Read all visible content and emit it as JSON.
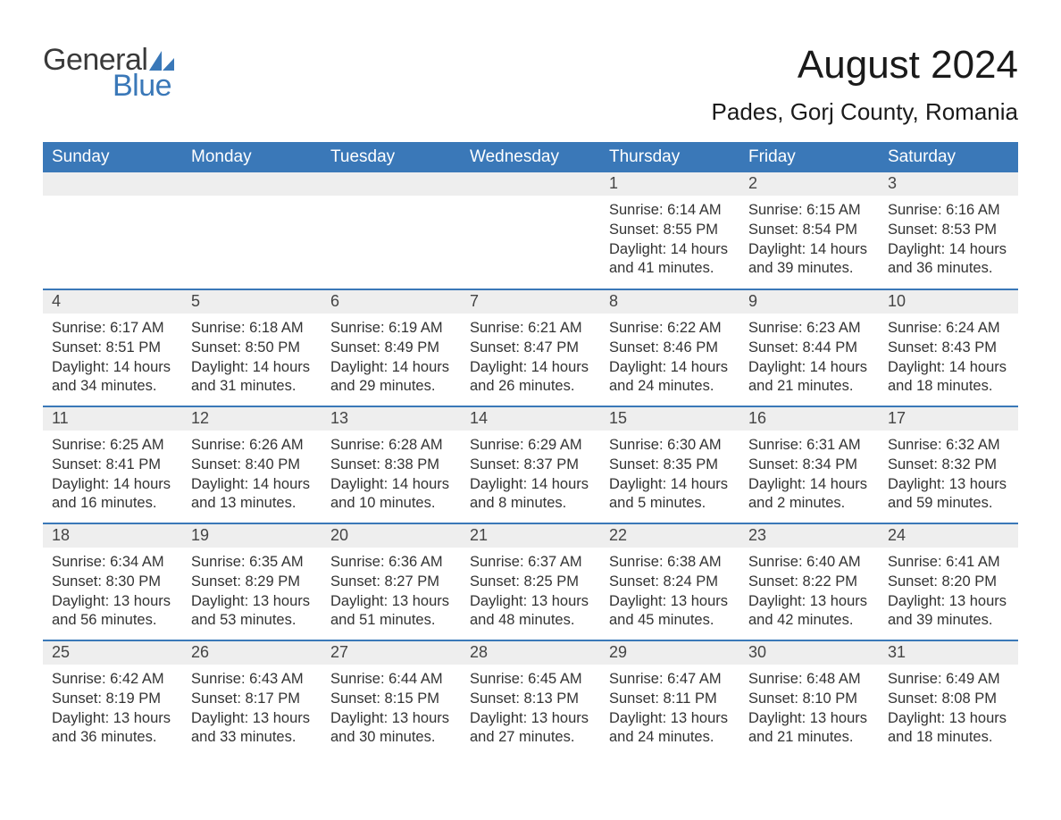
{
  "brand": {
    "general": "General",
    "blue": "Blue",
    "accent": "#3a78b8"
  },
  "title": "August 2024",
  "location": "Pades, Gorj County, Romania",
  "colors": {
    "header_bg": "#3a78b8",
    "header_text": "#ffffff",
    "date_strip_bg": "#eeeeee",
    "week_divider": "#3a78b8",
    "body_text": "#333333",
    "background": "#ffffff"
  },
  "typography": {
    "title_fontsize": 44,
    "location_fontsize": 26,
    "day_header_fontsize": 19,
    "date_fontsize": 18,
    "info_fontsize": 16.5
  },
  "calendar": {
    "day_names": [
      "Sunday",
      "Monday",
      "Tuesday",
      "Wednesday",
      "Thursday",
      "Friday",
      "Saturday"
    ],
    "weeks": [
      [
        null,
        null,
        null,
        null,
        {
          "date": "1",
          "sunrise": "Sunrise: 6:14 AM",
          "sunset": "Sunset: 8:55 PM",
          "dl1": "Daylight: 14 hours",
          "dl2": "and 41 minutes."
        },
        {
          "date": "2",
          "sunrise": "Sunrise: 6:15 AM",
          "sunset": "Sunset: 8:54 PM",
          "dl1": "Daylight: 14 hours",
          "dl2": "and 39 minutes."
        },
        {
          "date": "3",
          "sunrise": "Sunrise: 6:16 AM",
          "sunset": "Sunset: 8:53 PM",
          "dl1": "Daylight: 14 hours",
          "dl2": "and 36 minutes."
        }
      ],
      [
        {
          "date": "4",
          "sunrise": "Sunrise: 6:17 AM",
          "sunset": "Sunset: 8:51 PM",
          "dl1": "Daylight: 14 hours",
          "dl2": "and 34 minutes."
        },
        {
          "date": "5",
          "sunrise": "Sunrise: 6:18 AM",
          "sunset": "Sunset: 8:50 PM",
          "dl1": "Daylight: 14 hours",
          "dl2": "and 31 minutes."
        },
        {
          "date": "6",
          "sunrise": "Sunrise: 6:19 AM",
          "sunset": "Sunset: 8:49 PM",
          "dl1": "Daylight: 14 hours",
          "dl2": "and 29 minutes."
        },
        {
          "date": "7",
          "sunrise": "Sunrise: 6:21 AM",
          "sunset": "Sunset: 8:47 PM",
          "dl1": "Daylight: 14 hours",
          "dl2": "and 26 minutes."
        },
        {
          "date": "8",
          "sunrise": "Sunrise: 6:22 AM",
          "sunset": "Sunset: 8:46 PM",
          "dl1": "Daylight: 14 hours",
          "dl2": "and 24 minutes."
        },
        {
          "date": "9",
          "sunrise": "Sunrise: 6:23 AM",
          "sunset": "Sunset: 8:44 PM",
          "dl1": "Daylight: 14 hours",
          "dl2": "and 21 minutes."
        },
        {
          "date": "10",
          "sunrise": "Sunrise: 6:24 AM",
          "sunset": "Sunset: 8:43 PM",
          "dl1": "Daylight: 14 hours",
          "dl2": "and 18 minutes."
        }
      ],
      [
        {
          "date": "11",
          "sunrise": "Sunrise: 6:25 AM",
          "sunset": "Sunset: 8:41 PM",
          "dl1": "Daylight: 14 hours",
          "dl2": "and 16 minutes."
        },
        {
          "date": "12",
          "sunrise": "Sunrise: 6:26 AM",
          "sunset": "Sunset: 8:40 PM",
          "dl1": "Daylight: 14 hours",
          "dl2": "and 13 minutes."
        },
        {
          "date": "13",
          "sunrise": "Sunrise: 6:28 AM",
          "sunset": "Sunset: 8:38 PM",
          "dl1": "Daylight: 14 hours",
          "dl2": "and 10 minutes."
        },
        {
          "date": "14",
          "sunrise": "Sunrise: 6:29 AM",
          "sunset": "Sunset: 8:37 PM",
          "dl1": "Daylight: 14 hours",
          "dl2": "and 8 minutes."
        },
        {
          "date": "15",
          "sunrise": "Sunrise: 6:30 AM",
          "sunset": "Sunset: 8:35 PM",
          "dl1": "Daylight: 14 hours",
          "dl2": "and 5 minutes."
        },
        {
          "date": "16",
          "sunrise": "Sunrise: 6:31 AM",
          "sunset": "Sunset: 8:34 PM",
          "dl1": "Daylight: 14 hours",
          "dl2": "and 2 minutes."
        },
        {
          "date": "17",
          "sunrise": "Sunrise: 6:32 AM",
          "sunset": "Sunset: 8:32 PM",
          "dl1": "Daylight: 13 hours",
          "dl2": "and 59 minutes."
        }
      ],
      [
        {
          "date": "18",
          "sunrise": "Sunrise: 6:34 AM",
          "sunset": "Sunset: 8:30 PM",
          "dl1": "Daylight: 13 hours",
          "dl2": "and 56 minutes."
        },
        {
          "date": "19",
          "sunrise": "Sunrise: 6:35 AM",
          "sunset": "Sunset: 8:29 PM",
          "dl1": "Daylight: 13 hours",
          "dl2": "and 53 minutes."
        },
        {
          "date": "20",
          "sunrise": "Sunrise: 6:36 AM",
          "sunset": "Sunset: 8:27 PM",
          "dl1": "Daylight: 13 hours",
          "dl2": "and 51 minutes."
        },
        {
          "date": "21",
          "sunrise": "Sunrise: 6:37 AM",
          "sunset": "Sunset: 8:25 PM",
          "dl1": "Daylight: 13 hours",
          "dl2": "and 48 minutes."
        },
        {
          "date": "22",
          "sunrise": "Sunrise: 6:38 AM",
          "sunset": "Sunset: 8:24 PM",
          "dl1": "Daylight: 13 hours",
          "dl2": "and 45 minutes."
        },
        {
          "date": "23",
          "sunrise": "Sunrise: 6:40 AM",
          "sunset": "Sunset: 8:22 PM",
          "dl1": "Daylight: 13 hours",
          "dl2": "and 42 minutes."
        },
        {
          "date": "24",
          "sunrise": "Sunrise: 6:41 AM",
          "sunset": "Sunset: 8:20 PM",
          "dl1": "Daylight: 13 hours",
          "dl2": "and 39 minutes."
        }
      ],
      [
        {
          "date": "25",
          "sunrise": "Sunrise: 6:42 AM",
          "sunset": "Sunset: 8:19 PM",
          "dl1": "Daylight: 13 hours",
          "dl2": "and 36 minutes."
        },
        {
          "date": "26",
          "sunrise": "Sunrise: 6:43 AM",
          "sunset": "Sunset: 8:17 PM",
          "dl1": "Daylight: 13 hours",
          "dl2": "and 33 minutes."
        },
        {
          "date": "27",
          "sunrise": "Sunrise: 6:44 AM",
          "sunset": "Sunset: 8:15 PM",
          "dl1": "Daylight: 13 hours",
          "dl2": "and 30 minutes."
        },
        {
          "date": "28",
          "sunrise": "Sunrise: 6:45 AM",
          "sunset": "Sunset: 8:13 PM",
          "dl1": "Daylight: 13 hours",
          "dl2": "and 27 minutes."
        },
        {
          "date": "29",
          "sunrise": "Sunrise: 6:47 AM",
          "sunset": "Sunset: 8:11 PM",
          "dl1": "Daylight: 13 hours",
          "dl2": "and 24 minutes."
        },
        {
          "date": "30",
          "sunrise": "Sunrise: 6:48 AM",
          "sunset": "Sunset: 8:10 PM",
          "dl1": "Daylight: 13 hours",
          "dl2": "and 21 minutes."
        },
        {
          "date": "31",
          "sunrise": "Sunrise: 6:49 AM",
          "sunset": "Sunset: 8:08 PM",
          "dl1": "Daylight: 13 hours",
          "dl2": "and 18 minutes."
        }
      ]
    ]
  }
}
